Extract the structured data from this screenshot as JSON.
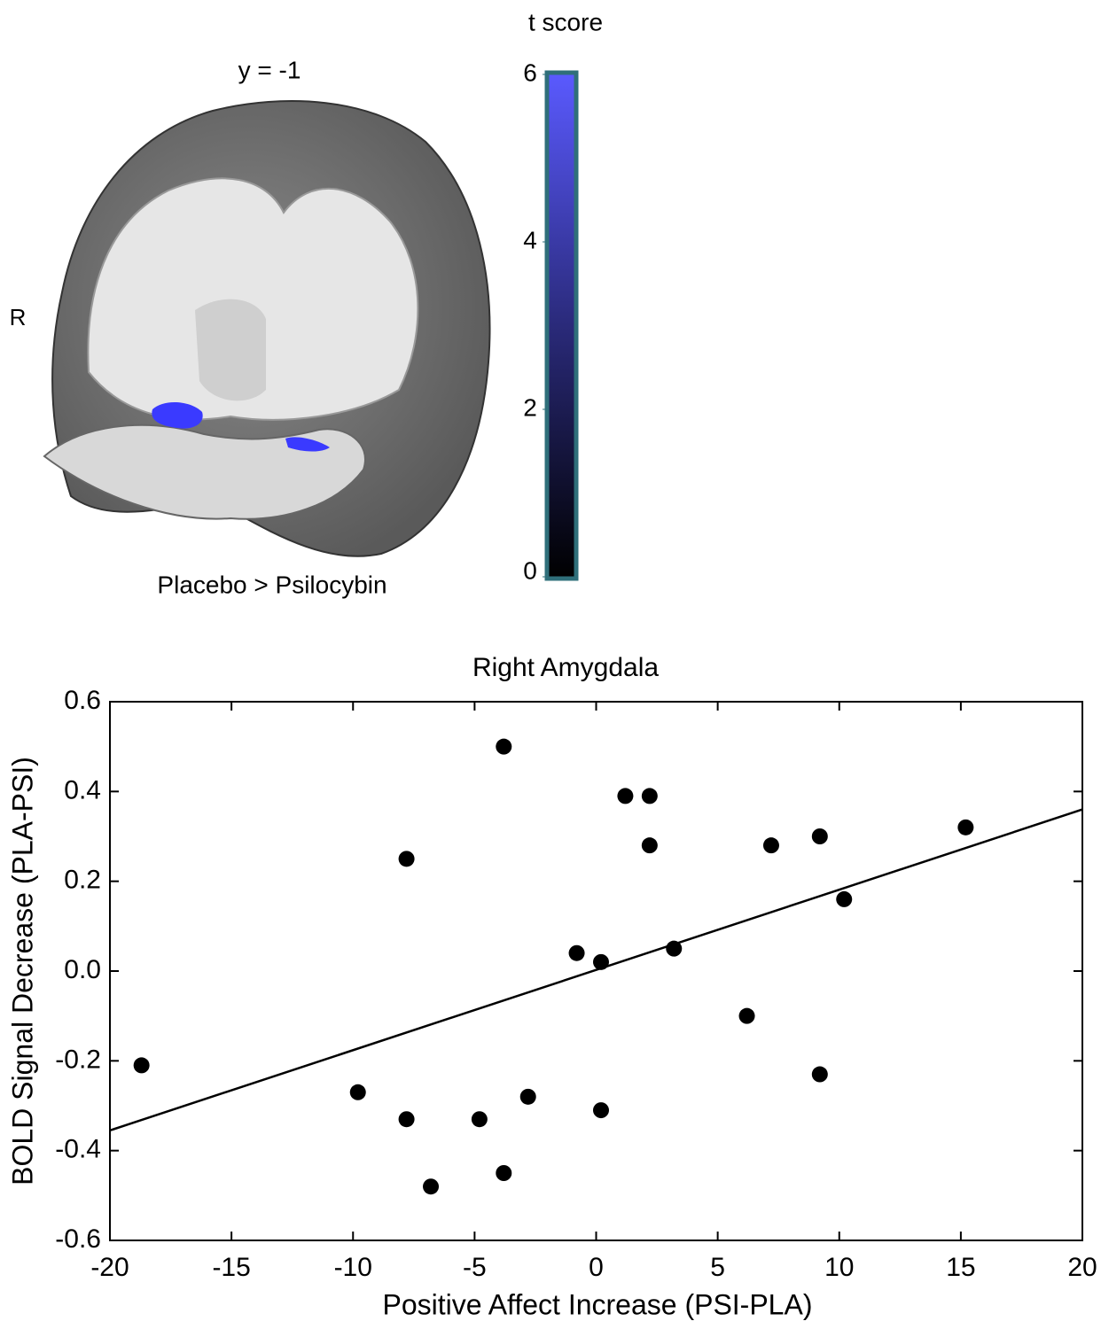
{
  "brain_panel": {
    "title": "y = -1",
    "side_label": "R",
    "caption": "Placebo > Psilocybin",
    "colorbar": {
      "title": "t score",
      "lim": [
        0,
        6
      ],
      "ticks": [
        0,
        2,
        4,
        6
      ]
    }
  },
  "chart_data": {
    "type": "scatter",
    "title": "Right Amygdala",
    "x_label": "Positive Affect Increase (PSI-PLA)",
    "y_label": "BOLD Signal Decrease (PLA-PSI)",
    "x": [
      -18.7,
      -9.8,
      -7.8,
      -7.8,
      -6.8,
      -4.8,
      -3.8,
      -3.8,
      -2.8,
      -0.8,
      0.2,
      0.2,
      1.2,
      2.2,
      2.2,
      3.2,
      6.2,
      7.2,
      9.2,
      9.2,
      10.2,
      15.2
    ],
    "values": [
      -0.21,
      -0.27,
      -0.33,
      0.25,
      -0.48,
      -0.33,
      0.5,
      -0.45,
      -0.28,
      0.04,
      0.02,
      -0.31,
      0.39,
      0.39,
      0.28,
      0.05,
      -0.1,
      0.28,
      0.3,
      -0.23,
      0.16,
      0.32
    ],
    "color": "#000000",
    "trendline": {
      "x": [
        -20,
        20
      ],
      "y": [
        -0.355,
        0.36
      ]
    },
    "xlim": [
      -20,
      20
    ],
    "xticks": [
      -20,
      -15,
      -10,
      -5,
      0,
      5,
      10,
      15,
      20
    ],
    "ylim": [
      -0.6,
      0.6
    ],
    "yticks": [
      -0.6,
      -0.4,
      -0.2,
      {
        "value": 0,
        "label": "0.0"
      },
      0.2,
      0.4,
      0.6
    ]
  }
}
